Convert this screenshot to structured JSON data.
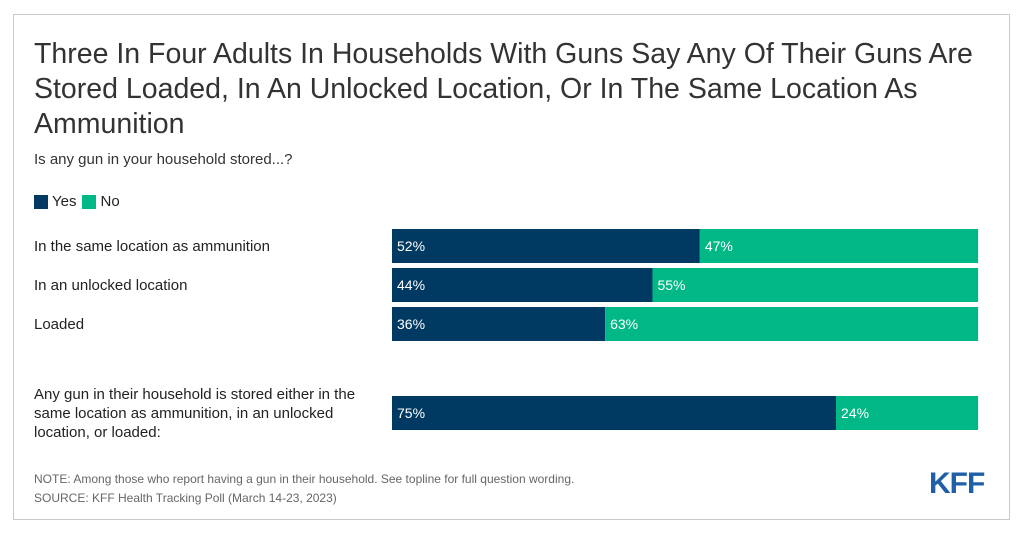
{
  "title": "Three In Four Adults In Households With Guns Say Any Of Their Guns Are Stored Loaded, In An Unlocked Location, Or In The Same Location As Ammunition",
  "subtitle": "Is any gun in your household stored...?",
  "note": "NOTE: Among those who report having a gun in their household. See topline for full question wording.",
  "source": "SOURCE: KFF Health Tracking Poll (March 14-23, 2023)",
  "logo": "KFF",
  "colors": {
    "yes": "#003a63",
    "no": "#00b885",
    "logo": "#1f5fa8"
  },
  "chart_data": {
    "type": "bar",
    "orientation": "horizontal",
    "stacked": true,
    "legend": "top-left",
    "xlim": [
      0,
      100
    ],
    "categories": [
      "In the same location as ammunition",
      "In an unlocked location",
      "Loaded",
      "Any gun in their household is stored either in the same location as ammunition, in an unlocked location, or loaded:"
    ],
    "series": [
      {
        "name": "Yes",
        "values": [
          52,
          44,
          36,
          75
        ]
      },
      {
        "name": "No",
        "values": [
          47,
          55,
          63,
          24
        ]
      }
    ]
  }
}
